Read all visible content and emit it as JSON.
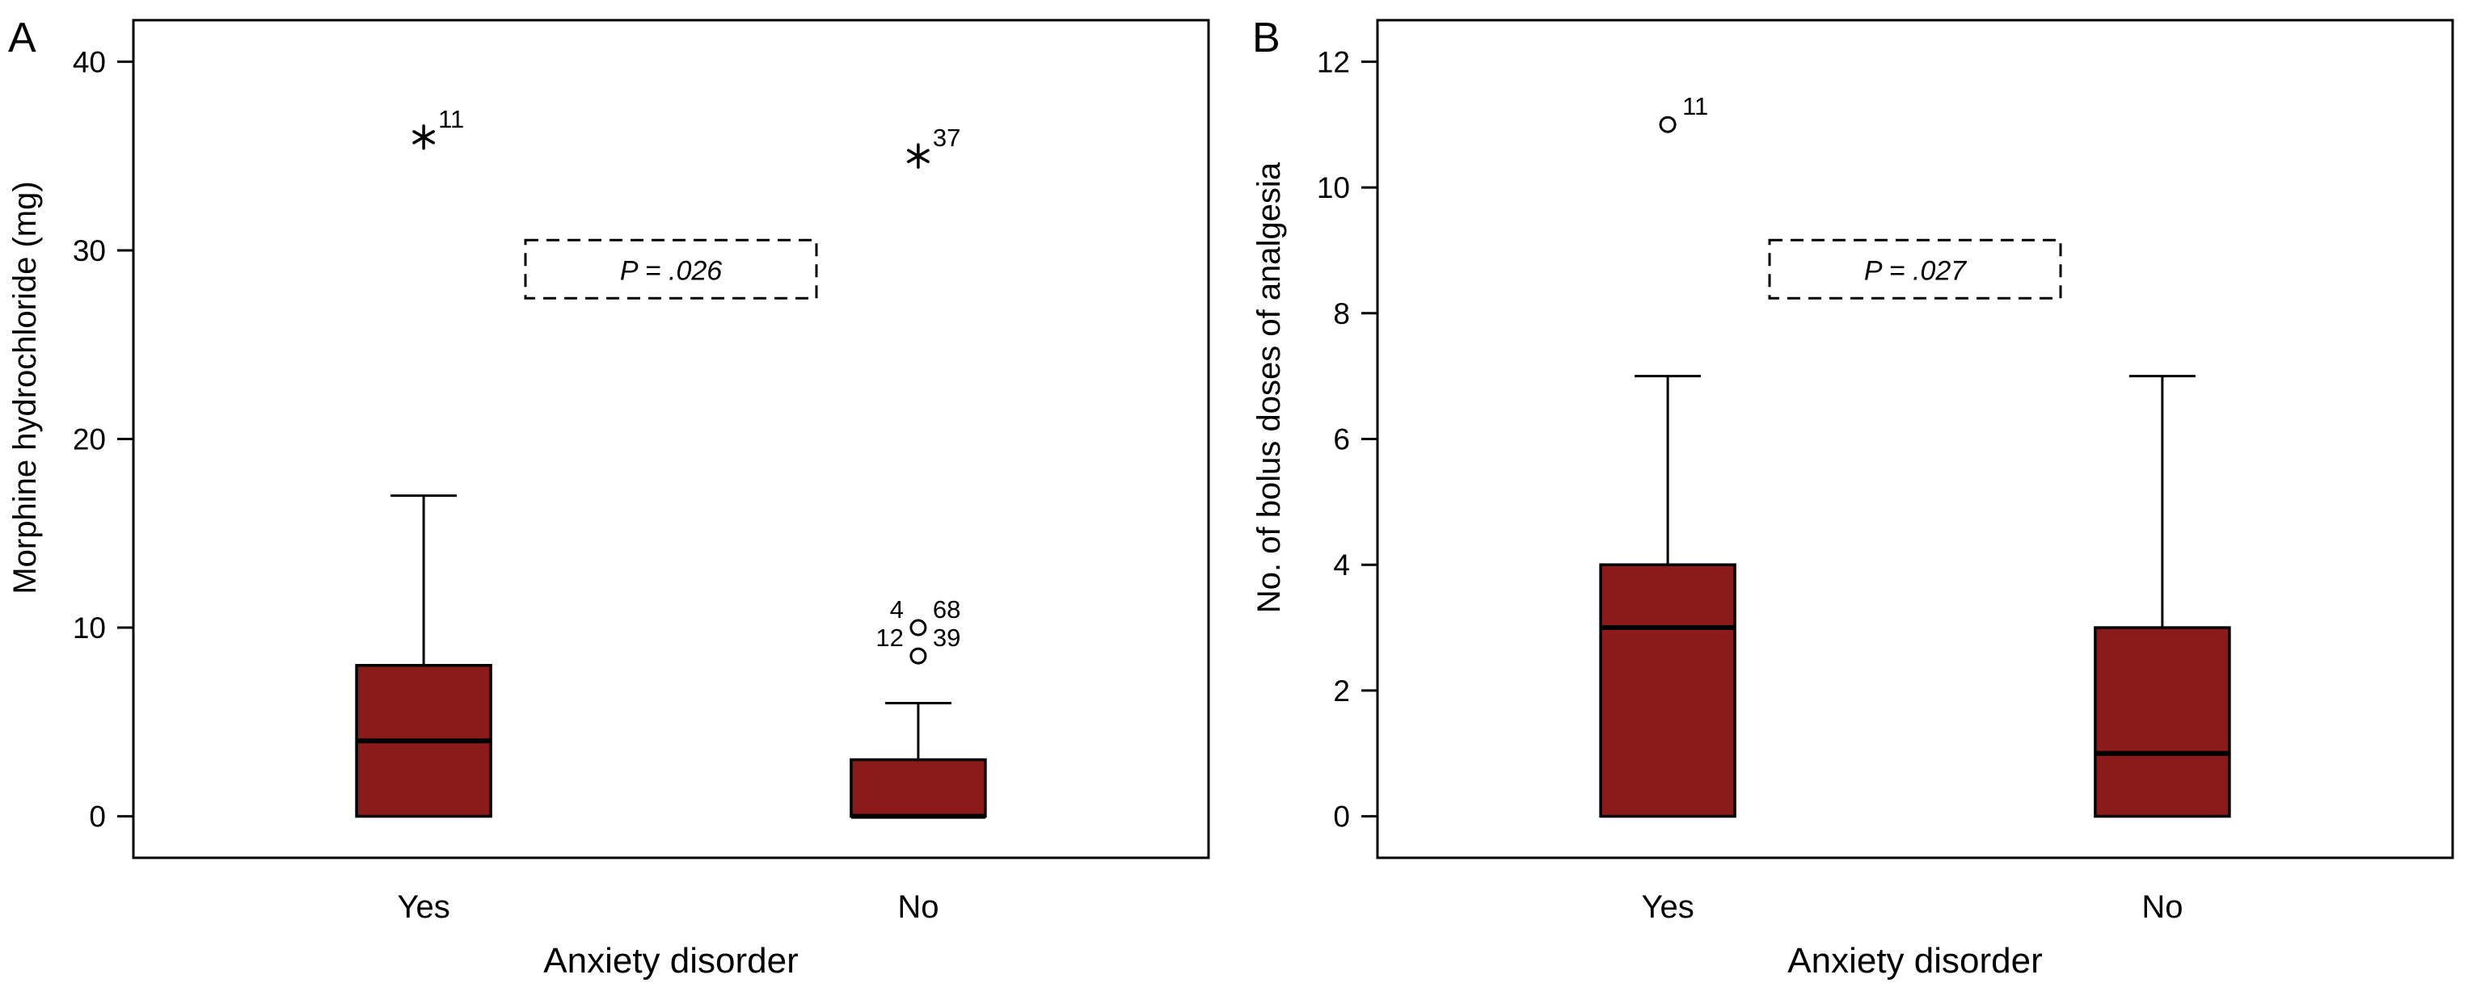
{
  "figure": {
    "background": "#ffffff",
    "box_fill": "#8b1a1a",
    "line_color": "#000000"
  },
  "chart_data": [
    {
      "type": "boxplot",
      "panel_label": "A",
      "title": "",
      "xlabel": "Anxiety disorder",
      "ylabel": "Morphine hydrochloride (mg)",
      "categories": [
        "Yes",
        "No"
      ],
      "ylim": [
        -2.2,
        42.2
      ],
      "yticks": [
        0,
        10,
        20,
        30,
        40
      ],
      "grid": false,
      "boxes": [
        {
          "category": "Yes",
          "q1": 0,
          "median": 4,
          "q3": 8,
          "whisker_low": 0,
          "whisker_high": 17,
          "outliers": [
            {
              "value": 36,
              "marker": "asterisk",
              "label_right": "11"
            }
          ]
        },
        {
          "category": "No",
          "q1": 0,
          "median": 0,
          "q3": 3,
          "whisker_low": 0,
          "whisker_high": 6,
          "outliers": [
            {
              "value": 35,
              "marker": "asterisk",
              "label_right": "37"
            },
            {
              "value": 10,
              "marker": "circle",
              "label_left": "4",
              "label_right": "68"
            },
            {
              "value": 8.5,
              "marker": "circle",
              "label_left": "12",
              "label_right": "39"
            }
          ]
        }
      ],
      "annotation": {
        "text": "P = .026",
        "value": 29
      }
    },
    {
      "type": "boxplot",
      "panel_label": "B",
      "title": "",
      "xlabel": "Anxiety disorder",
      "ylabel": "No. of bolus doses of analgesia",
      "categories": [
        "Yes",
        "No"
      ],
      "ylim": [
        -0.66,
        12.66
      ],
      "yticks": [
        0,
        2,
        4,
        6,
        8,
        10,
        12
      ],
      "grid": false,
      "boxes": [
        {
          "category": "Yes",
          "q1": 0,
          "median": 3,
          "q3": 4,
          "whisker_low": 0,
          "whisker_high": 7,
          "outliers": [
            {
              "value": 11,
              "marker": "circle",
              "label_right": "11"
            }
          ]
        },
        {
          "category": "No",
          "q1": 0,
          "median": 1,
          "q3": 3,
          "whisker_low": 0,
          "whisker_high": 7,
          "outliers": []
        }
      ],
      "annotation": {
        "text": "P = .027",
        "value": 8.7
      }
    }
  ]
}
